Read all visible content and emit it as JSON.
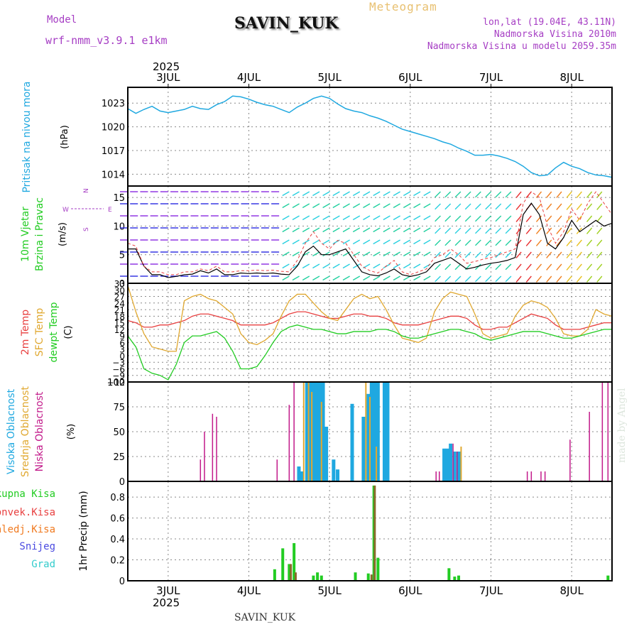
{
  "header": {
    "model_label": "Model",
    "model_name": "wrf-nmm_v3.9.1 e1km",
    "station": "SAVIN_KUK",
    "title": "Meteogram",
    "lonlat": "lon,lat (19.04E, 43.11N)",
    "elevation": "Nadmorska Visina 2010m",
    "model_elevation": "Nadmorska Visina u modelu 2059.35m"
  },
  "footer": {
    "station": "SAVIN_KUK",
    "credit": "made by Angel"
  },
  "colors": {
    "pressure": "#1fa8e0",
    "t2m": "#e84040",
    "sfc": "#e0a830",
    "dew": "#22cc22",
    "high": "#1fa8e0",
    "mid": "#e0a830",
    "low": "#c21a8a",
    "total": "#22cc22",
    "conv": "#e84040",
    "frozen": "#f07a20",
    "snow": "#4a4ae0",
    "grad": "#33cccc",
    "purple": "#a63ec4"
  },
  "time_axis": {
    "year": "2025",
    "labels": [
      "3JUL",
      "4JUL",
      "5JUL",
      "6JUL",
      "7JUL",
      "8JUL"
    ]
  },
  "chart_data": [
    {
      "type": "line",
      "name": "pressure",
      "ylabel": "Pritisak na nivou mora",
      "unit": "(hPa)",
      "yticks": [
        1014,
        1017,
        1020,
        1023
      ],
      "ylim": [
        1012.5,
        1025
      ],
      "x": [
        2.5,
        2.6,
        2.7,
        2.8,
        2.9,
        3.0,
        3.1,
        3.2,
        3.3,
        3.4,
        3.5,
        3.6,
        3.7,
        3.8,
        3.9,
        4.0,
        4.1,
        4.2,
        4.3,
        4.4,
        4.5,
        4.6,
        4.7,
        4.8,
        4.9,
        5.0,
        5.1,
        5.2,
        5.3,
        5.4,
        5.5,
        5.6,
        5.7,
        5.8,
        5.9,
        6.0,
        6.1,
        6.2,
        6.3,
        6.4,
        6.5,
        6.6,
        6.7,
        6.8,
        6.9,
        7.0,
        7.1,
        7.2,
        7.3,
        7.4,
        7.5,
        7.6,
        7.7,
        7.8,
        7.9,
        8.0,
        8.1,
        8.2,
        8.3,
        8.4,
        8.5
      ],
      "values": [
        1022.3,
        1021.7,
        1022.2,
        1022.6,
        1022.0,
        1021.8,
        1022.0,
        1022.2,
        1022.6,
        1022.3,
        1022.2,
        1022.8,
        1023.2,
        1023.9,
        1023.8,
        1023.5,
        1023.1,
        1022.8,
        1022.6,
        1022.2,
        1021.8,
        1022.5,
        1023.0,
        1023.6,
        1023.9,
        1023.6,
        1022.9,
        1022.3,
        1022.0,
        1021.8,
        1021.4,
        1021.1,
        1020.7,
        1020.2,
        1019.7,
        1019.4,
        1019.1,
        1018.8,
        1018.5,
        1018.1,
        1017.8,
        1017.3,
        1016.9,
        1016.4,
        1016.4,
        1016.5,
        1016.3,
        1016.0,
        1015.6,
        1015.0,
        1014.2,
        1013.8,
        1013.9,
        1014.8,
        1015.5,
        1015.0,
        1014.7,
        1014.2,
        1013.9,
        1013.8,
        1013.6
      ]
    },
    {
      "type": "line",
      "name": "wind",
      "ylabel": "10m Vjetar Brzina i Pravac",
      "unit": "(m/s)",
      "compass": [
        "N",
        "W",
        "E",
        "S"
      ],
      "yticks": [
        0,
        5,
        10,
        15
      ],
      "ylim": [
        0,
        17
      ],
      "x": [
        2.5,
        2.6,
        2.7,
        2.8,
        2.9,
        3.0,
        3.1,
        3.2,
        3.3,
        3.4,
        3.5,
        3.6,
        3.7,
        3.8,
        3.9,
        4.0,
        4.1,
        4.2,
        4.3,
        4.4,
        4.5,
        4.6,
        4.7,
        4.8,
        4.9,
        5.0,
        5.1,
        5.2,
        5.3,
        5.4,
        5.5,
        5.6,
        5.7,
        5.8,
        5.9,
        6.0,
        6.1,
        6.2,
        6.3,
        6.4,
        6.5,
        6.6,
        6.7,
        6.8,
        6.9,
        7.0,
        7.1,
        7.2,
        7.3,
        7.4,
        7.5,
        7.6,
        7.7,
        7.8,
        7.9,
        8.0,
        8.1,
        8.2,
        8.3,
        8.4,
        8.5
      ],
      "speed": [
        6,
        6,
        3,
        1.5,
        1.5,
        1,
        1.2,
        1.5,
        1.6,
        2.2,
        1.8,
        2.5,
        1.5,
        1.5,
        1.8,
        1.7,
        1.8,
        1.7,
        1.8,
        1.6,
        1.5,
        3,
        5.5,
        6.5,
        5,
        5,
        5.5,
        6,
        4,
        2,
        1.5,
        1.3,
        1.8,
        2.5,
        1.5,
        1.2,
        1.5,
        2,
        3.5,
        4,
        4.5,
        3.5,
        2.5,
        2.8,
        3.2,
        3.5,
        3.7,
        4,
        4.5,
        12,
        14,
        12,
        7,
        6,
        8,
        11,
        9,
        10,
        11,
        10,
        10.5
      ],
      "gust": [
        7,
        6.5,
        3,
        2,
        2,
        1.5,
        1.5,
        2,
        2,
        2.5,
        2.2,
        3,
        2,
        2,
        2.2,
        2.2,
        2.3,
        2.2,
        2.3,
        2.1,
        2,
        4,
        7,
        9,
        7,
        6,
        7.5,
        7,
        5,
        3,
        2.2,
        1.8,
        3,
        4,
        2,
        1.5,
        2,
        2.5,
        4.5,
        5,
        6,
        5,
        3.5,
        3.8,
        4.2,
        4.5,
        5,
        5.5,
        6,
        14,
        16,
        15,
        10,
        7,
        9,
        13,
        11,
        14,
        16,
        14,
        12
      ]
    },
    {
      "type": "line",
      "name": "temperature",
      "ylabel": "2m Temp / SFC Temp / dewpt Temp",
      "series_labels": [
        "2m Temp",
        "SFC Temp",
        "dewpt Temp"
      ],
      "unit": "(C)",
      "yticks": [
        -12,
        -9,
        -6,
        -3,
        0,
        3,
        6,
        9,
        12,
        15,
        18,
        21,
        24,
        27,
        30,
        33
      ],
      "ylim": [
        -12,
        33
      ],
      "x": [
        2.5,
        2.6,
        2.7,
        2.8,
        2.9,
        3.0,
        3.1,
        3.2,
        3.3,
        3.4,
        3.5,
        3.6,
        3.7,
        3.8,
        3.9,
        4.0,
        4.1,
        4.2,
        4.3,
        4.4,
        4.5,
        4.6,
        4.7,
        4.8,
        4.9,
        5.0,
        5.1,
        5.2,
        5.3,
        5.4,
        5.5,
        5.6,
        5.7,
        5.8,
        5.9,
        6.0,
        6.1,
        6.2,
        6.3,
        6.4,
        6.5,
        6.6,
        6.7,
        6.8,
        6.9,
        7.0,
        7.1,
        7.2,
        7.3,
        7.4,
        7.5,
        7.6,
        7.7,
        7.8,
        7.9,
        8.0,
        8.1,
        8.2,
        8.3,
        8.4,
        8.5
      ],
      "series": [
        {
          "name": "2m Temp",
          "values": [
            16,
            15,
            13,
            13,
            14,
            14,
            15,
            16,
            18,
            19,
            19,
            18,
            17,
            16,
            14,
            14,
            14,
            14,
            15,
            17,
            19,
            20,
            20,
            19,
            18,
            17,
            17,
            18,
            19,
            19,
            18,
            18,
            17,
            15,
            14,
            14,
            14,
            15,
            16,
            17,
            18,
            18,
            17,
            14,
            12,
            12,
            13,
            13,
            15,
            17,
            19,
            18,
            17,
            14,
            12,
            12,
            12,
            13,
            14,
            15,
            15
          ]
        },
        {
          "name": "SFC Temp",
          "values": [
            32,
            20,
            10,
            4,
            3,
            2,
            2,
            25,
            27,
            28,
            26,
            25,
            22,
            19,
            10,
            6,
            5,
            7,
            10,
            18,
            25,
            28,
            28,
            24,
            20,
            17,
            16,
            21,
            26,
            28,
            26,
            27,
            21,
            14,
            8,
            7,
            6,
            8,
            20,
            26,
            29,
            28,
            27,
            19,
            10,
            8,
            9,
            10,
            18,
            23,
            25,
            24,
            22,
            17,
            10,
            9,
            9,
            12,
            21,
            19,
            18
          ]
        },
        {
          "name": "dewpt Temp",
          "values": [
            9,
            4,
            -6,
            -8,
            -9,
            -11,
            -4,
            6,
            9,
            9,
            10,
            11,
            8,
            2,
            -6,
            -6,
            -5,
            0,
            6,
            11,
            13,
            14,
            13,
            12,
            12,
            11,
            10,
            10,
            11,
            11,
            11,
            12,
            12,
            11,
            9,
            8,
            8,
            9,
            10,
            11,
            12,
            12,
            11,
            10,
            8,
            7,
            8,
            9,
            10,
            11,
            11,
            11,
            10,
            9,
            8,
            8,
            9,
            10,
            11,
            12,
            12
          ]
        }
      ]
    },
    {
      "type": "bar",
      "name": "cloud",
      "ylabel": "Visoka Oblacnost / Srednja Oblacnost / Niska Oblacnost",
      "series_labels": [
        "Visoka Oblacnost",
        "Srednja Oblacnost",
        "Niska Oblacnost"
      ],
      "unit": "(%)",
      "yticks": [
        0,
        25,
        50,
        75,
        100
      ],
      "ylim": [
        0,
        100
      ],
      "high": [
        [
          4.62,
          15
        ],
        [
          4.66,
          10
        ],
        [
          4.72,
          100
        ],
        [
          4.76,
          100
        ],
        [
          4.8,
          100
        ],
        [
          4.84,
          100
        ],
        [
          4.88,
          100
        ],
        [
          4.92,
          100
        ],
        [
          4.96,
          55
        ],
        [
          5.05,
          22
        ],
        [
          5.1,
          12
        ],
        [
          5.28,
          78
        ],
        [
          5.42,
          65
        ],
        [
          5.48,
          88
        ],
        [
          5.52,
          100
        ],
        [
          5.56,
          100
        ],
        [
          5.6,
          100
        ],
        [
          5.68,
          100
        ],
        [
          5.72,
          100
        ],
        [
          6.42,
          33
        ],
        [
          6.46,
          33
        ],
        [
          6.5,
          38
        ],
        [
          6.55,
          30
        ],
        [
          6.6,
          30
        ]
      ],
      "mid": [
        [
          4.68,
          100
        ],
        [
          4.74,
          100
        ],
        [
          4.78,
          90
        ],
        [
          4.9,
          80
        ],
        [
          5.45,
          100
        ],
        [
          5.5,
          85
        ],
        [
          5.58,
          35
        ],
        [
          6.63,
          35
        ]
      ],
      "low": [
        [
          3.4,
          22
        ],
        [
          3.45,
          50
        ],
        [
          3.55,
          68
        ],
        [
          3.6,
          65
        ],
        [
          4.35,
          22
        ],
        [
          4.5,
          77
        ],
        [
          4.56,
          100
        ],
        [
          6.32,
          10
        ],
        [
          6.36,
          10
        ],
        [
          6.53,
          38
        ],
        [
          6.58,
          30
        ],
        [
          7.45,
          10
        ],
        [
          7.5,
          10
        ],
        [
          7.62,
          10
        ],
        [
          7.67,
          10
        ],
        [
          7.98,
          42
        ],
        [
          8.22,
          70
        ],
        [
          8.38,
          100
        ],
        [
          8.45,
          100
        ]
      ]
    },
    {
      "type": "bar",
      "name": "precipitation",
      "ylabel": "1hr Precip (mm)",
      "series_labels": [
        "Ukupna Kisa",
        "Konvek.Kisa",
        "Zaledj.Kisa",
        "Snijeg",
        "Grad"
      ],
      "yticks": [
        0,
        0.2,
        0.4,
        0.6,
        0.8
      ],
      "ylim": [
        0,
        0.95
      ],
      "total": [
        [
          4.32,
          0.11
        ],
        [
          4.42,
          0.31
        ],
        [
          4.5,
          0.16
        ],
        [
          4.56,
          0.36
        ],
        [
          4.8,
          0.05
        ],
        [
          4.85,
          0.08
        ],
        [
          4.9,
          0.05
        ],
        [
          5.32,
          0.08
        ],
        [
          5.48,
          0.07
        ],
        [
          5.55,
          0.91
        ],
        [
          5.6,
          0.22
        ],
        [
          6.48,
          0.12
        ],
        [
          6.55,
          0.04
        ],
        [
          6.6,
          0.05
        ],
        [
          8.45,
          0.05
        ]
      ],
      "convective": [
        [
          4.52,
          0.16
        ],
        [
          4.58,
          0.08
        ],
        [
          5.52,
          0.06
        ],
        [
          5.56,
          0.91
        ]
      ]
    }
  ]
}
